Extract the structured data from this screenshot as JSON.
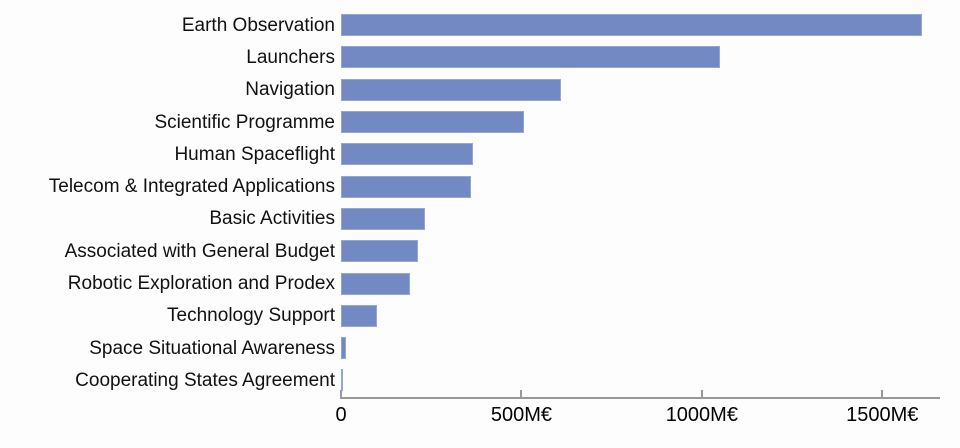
{
  "chart_data": {
    "type": "bar",
    "orientation": "horizontal",
    "title": "",
    "xlabel": "",
    "ylabel": "",
    "unit": "M€",
    "categories": [
      "Earth Observation",
      "Launchers",
      "Navigation",
      "Scientific Programme",
      "Human Spaceflight",
      "Telecom & Integrated Applications",
      "Basic Activities",
      "Associated with General Budget",
      "Robotic Exploration and Prodex",
      "Technology Support",
      "Space Situational Awareness",
      "Cooperating States Agreement"
    ],
    "values": [
      1610,
      1050,
      610,
      507,
      366,
      360,
      233,
      213,
      190,
      100,
      14,
      4
    ],
    "xlim": [
      0,
      1660
    ],
    "x_ticks": [
      {
        "value": 0,
        "label": "0"
      },
      {
        "value": 500,
        "label": "500M€"
      },
      {
        "value": 1000,
        "label": "1000M€"
      },
      {
        "value": 1500,
        "label": "1500M€"
      }
    ],
    "grid": false,
    "legend": null,
    "tick_direction": "in"
  },
  "colors": {
    "background": "#fdfdfd",
    "bar_fill": "#7289c3",
    "bar_edge": "#93a6d4",
    "axis": "#999999",
    "label_text": "#111111",
    "tick_text": "#000000"
  }
}
